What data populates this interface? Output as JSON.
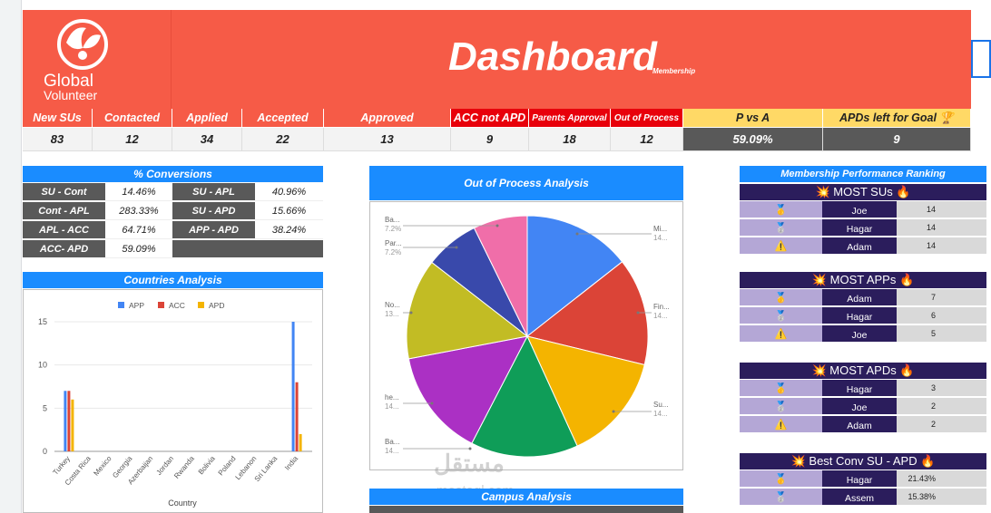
{
  "header": {
    "logo_line1": "Global",
    "logo_line2": "Volunteer",
    "title": "Dashboard",
    "subtitle": "Membership"
  },
  "kpis": [
    {
      "label": "New SUs",
      "value": "83"
    },
    {
      "label": "Contacted",
      "value": "12"
    },
    {
      "label": "Applied",
      "value": "34"
    },
    {
      "label": "Accepted",
      "value": "22"
    },
    {
      "label": "Approved",
      "value": "13"
    },
    {
      "label": "ACC not APD",
      "value": "9"
    },
    {
      "label": "Parents Approval",
      "value": "18"
    },
    {
      "label": "Out of Process",
      "value": "12"
    },
    {
      "label": "P vs A",
      "value": "59.09%"
    },
    {
      "label": "APDs left for Goal 🏆",
      "value": "9"
    }
  ],
  "conversions": {
    "title": "% Conversions",
    "rows": [
      {
        "l1": "SU - Cont",
        "v1": "14.46%",
        "l2": "SU - APL",
        "v2": "40.96%"
      },
      {
        "l1": "Cont - APL",
        "v1": "283.33%",
        "l2": "SU - APD",
        "v2": "15.66%"
      },
      {
        "l1": "APL - ACC",
        "v1": "64.71%",
        "l2": "APP - APD",
        "v2": "38.24%"
      },
      {
        "l1": "ACC- APD",
        "v1": "59.09%",
        "l2": "",
        "v2": ""
      }
    ]
  },
  "countries": {
    "title": "Countries Analysis",
    "xlabel": "Country",
    "legend": [
      "APP",
      "ACC",
      "APD"
    ]
  },
  "out_of_process": {
    "title": "Out of Process Analysis",
    "labels": [
      {
        "name": "Ba...",
        "pct": "7.2%"
      },
      {
        "name": "Par...",
        "pct": "7.2%"
      },
      {
        "name": "No...",
        "pct": "13..."
      },
      {
        "name": "he...",
        "pct": "14..."
      },
      {
        "name": "Ba...",
        "pct": "14..."
      },
      {
        "name": "Mi...",
        "pct": "14..."
      },
      {
        "name": "Fin...",
        "pct": "14..."
      },
      {
        "name": "Su...",
        "pct": "14..."
      }
    ]
  },
  "campus": {
    "title": "Campus Analysis"
  },
  "ranking": {
    "title": "Membership Performance Ranking",
    "sections": [
      {
        "title": "💥 MOST SUs 🔥",
        "rows": [
          {
            "medal": "🥇",
            "name": "Joe",
            "value": "14"
          },
          {
            "medal": "🥈",
            "name": "Hagar",
            "value": "14"
          },
          {
            "medal": "⚠️",
            "name": "Adam",
            "value": "14"
          }
        ]
      },
      {
        "title": "💥 MOST APPs 🔥",
        "rows": [
          {
            "medal": "🥇",
            "name": "Adam",
            "value": "7"
          },
          {
            "medal": "🥈",
            "name": "Hagar",
            "value": "6"
          },
          {
            "medal": "⚠️",
            "name": "Joe",
            "value": "5"
          }
        ]
      },
      {
        "title": "💥 MOST APDs 🔥",
        "rows": [
          {
            "medal": "🥇",
            "name": "Hagar",
            "value": "3"
          },
          {
            "medal": "🥈",
            "name": "Joe",
            "value": "2"
          },
          {
            "medal": "⚠️",
            "name": "Adam",
            "value": "2"
          }
        ]
      },
      {
        "title": "💥 Best Conv SU - APD 🔥",
        "rows": [
          {
            "medal": "🥇",
            "name": "Hagar",
            "value": "21.43%"
          },
          {
            "medal": "🥈",
            "name": "Assem",
            "value": "15.38%"
          }
        ]
      }
    ]
  },
  "watermark": {
    "brand": "مستقل",
    "url": "mostaql.com"
  },
  "colors": {
    "accent": "#f65b47",
    "blue": "#1a8cff",
    "purple": "#2b1d5c",
    "app": "#4285f4",
    "acc": "#db4437",
    "apd": "#f4b400"
  },
  "chart_data": [
    {
      "type": "bar",
      "title": "Countries Analysis",
      "xlabel": "Country",
      "ylabel": "",
      "ylim": [
        0,
        15
      ],
      "yticks": [
        0,
        5,
        10,
        15
      ],
      "categories": [
        "Turkey",
        "Costa Rica",
        "Mexico",
        "Georgia",
        "Azerbaijan",
        "Jordan",
        "Rwanda",
        "Bolivia",
        "Poland",
        "Lebanon",
        "Sri Lanka",
        "India"
      ],
      "series": [
        {
          "name": "APP",
          "color": "#4285f4",
          "values": [
            7,
            0,
            0,
            0,
            0,
            0,
            0,
            0,
            0,
            0,
            0,
            15
          ]
        },
        {
          "name": "ACC",
          "color": "#db4437",
          "values": [
            7,
            0,
            0,
            0,
            0,
            0,
            0,
            0,
            0,
            0,
            0,
            8
          ]
        },
        {
          "name": "APD",
          "color": "#f4b400",
          "values": [
            6,
            0,
            0,
            0,
            0,
            0,
            0,
            0,
            0,
            0,
            0,
            2
          ]
        }
      ],
      "legend": "top"
    },
    {
      "type": "pie",
      "title": "Out of Process Analysis",
      "slices": [
        {
          "label": "Mi...",
          "value": 14.3,
          "color": "#4285f4"
        },
        {
          "label": "Fin...",
          "value": 14.3,
          "color": "#db4437"
        },
        {
          "label": "Su...",
          "value": 14.3,
          "color": "#f4b400"
        },
        {
          "label": "Ba...",
          "value": 14.3,
          "color": "#0f9d58"
        },
        {
          "label": "he...",
          "value": 14.3,
          "color": "#ab30c4"
        },
        {
          "label": "No...",
          "value": 13.4,
          "color": "#c2bc24"
        },
        {
          "label": "Par...",
          "value": 7.2,
          "color": "#3949ab"
        },
        {
          "label": "Ba...",
          "value": 7.2,
          "color": "#f06ea9"
        }
      ]
    }
  ]
}
